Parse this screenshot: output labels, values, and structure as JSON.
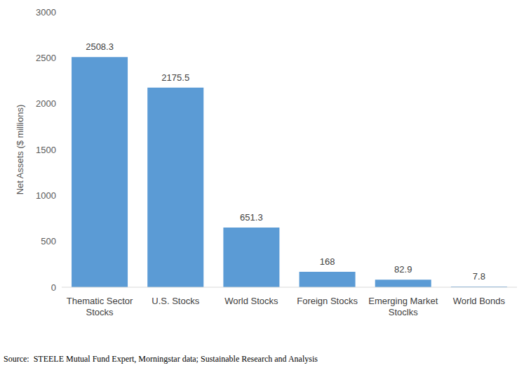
{
  "chart_data": {
    "type": "bar",
    "y_label": "Net Assets ($ millions)",
    "categories": [
      "Thematic Sector Stocks",
      "U.S. Stocks",
      "World Stocks",
      "Foreign Stocks",
      "Emerging Market Stoclks",
      "World Bonds"
    ],
    "values": [
      2508.3,
      2175.5,
      651.3,
      168,
      82.9,
      7.8
    ],
    "color": "#5b9bd5",
    "ylim": [
      0,
      3000
    ],
    "yticks": [
      0,
      500,
      1000,
      1500,
      2000,
      2500,
      3000
    ],
    "grid": false,
    "data_labels": true,
    "annotations": [
      "Source:  STEELE Mutual Fund Expert, Morningstar data; Sustainable Research and Analysis"
    ]
  }
}
